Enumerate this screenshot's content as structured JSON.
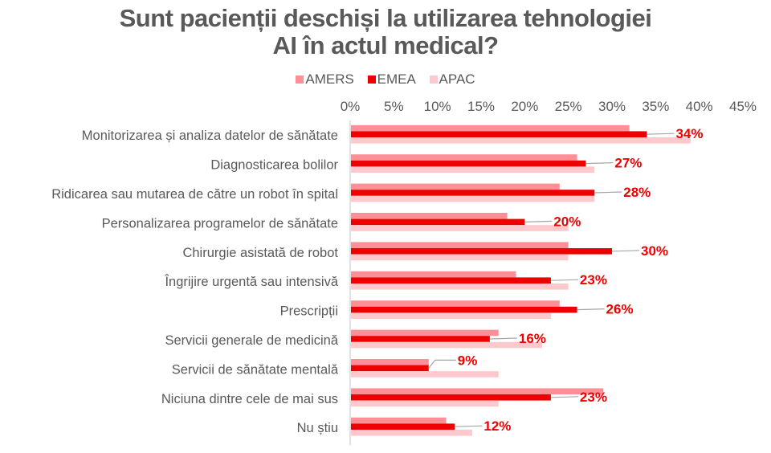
{
  "title_line1": "Sunt pacienții deschiși la utilizarea tehnologiei",
  "title_line2": "AI în actul medical?",
  "colors": {
    "AMERS": "#FF8F96",
    "EMEA": "#EE0000",
    "APAC": "#FFC8CC",
    "axis": "#D9D9D9",
    "leader": "#A6A6A6",
    "label": "#EE0000"
  },
  "chart_data": {
    "type": "bar",
    "orientation": "horizontal",
    "title": "Sunt pacienții deschiși la utilizarea tehnologiei AI în actul medical?",
    "xlabel": "",
    "ylabel": "",
    "xlim": [
      0,
      45
    ],
    "x_ticks": [
      "0%",
      "5%",
      "10%",
      "15%",
      "20%",
      "25%",
      "30%",
      "35%",
      "40%",
      "45%"
    ],
    "x_axis_position": "top",
    "grid": false,
    "legend": {
      "position": "top",
      "entries": [
        "AMERS",
        "EMEA",
        "APAC"
      ]
    },
    "categories": [
      "Monitorizarea și analiza datelor de sănătate",
      "Diagnosticarea bolilor",
      "Ridicarea sau mutarea de către un robot în spital",
      "Personalizarea programelor de sănătate",
      "Chirurgie asistată de robot",
      "Îngrijire urgentă sau intensivă",
      "Prescripții",
      "Servicii generale de medicină",
      "Servicii de sănătate mentală",
      "Niciuna dintre cele de mai sus",
      "Nu știu"
    ],
    "series": [
      {
        "name": "AMERS",
        "values": [
          32,
          26,
          24,
          18,
          25,
          19,
          24,
          17,
          9,
          29,
          11
        ]
      },
      {
        "name": "EMEA",
        "values": [
          34,
          27,
          28,
          20,
          30,
          23,
          26,
          16,
          9,
          23,
          12
        ]
      },
      {
        "name": "APAC",
        "values": [
          39,
          28,
          28,
          25,
          25,
          25,
          23,
          22,
          17,
          17,
          14
        ]
      }
    ],
    "data_labels": {
      "series": "EMEA",
      "labels": [
        "34%",
        "27%",
        "28%",
        "20%",
        "30%",
        "23%",
        "26%",
        "16%",
        "9%",
        "23%",
        "12%"
      ]
    }
  }
}
